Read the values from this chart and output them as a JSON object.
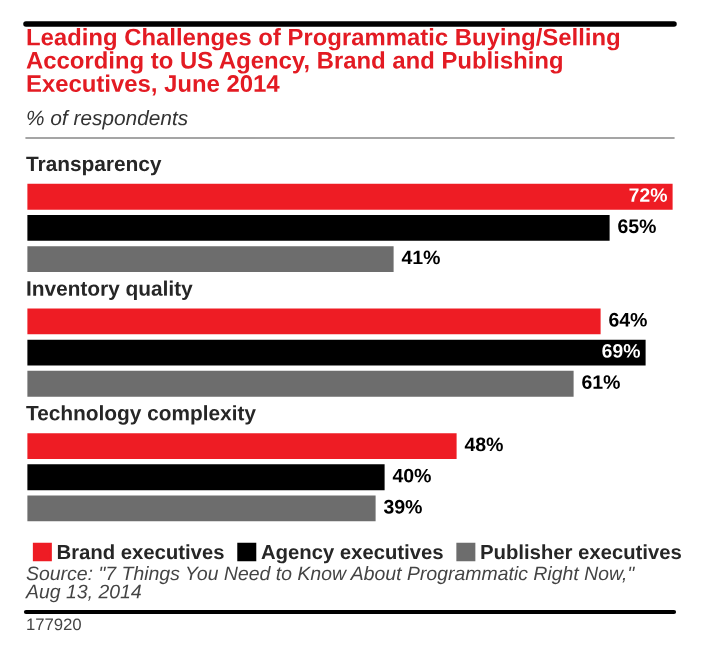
{
  "chart_data": {
    "type": "bar",
    "orientation": "horizontal",
    "title": "Leading Challenges of Programmatic Buying/Selling According to US Agency, Brand and Publishing Executives, June 2014",
    "subtitle": "% of respondents",
    "categories": [
      "Transparency",
      "Inventory quality",
      "Technology complexity"
    ],
    "series": [
      {
        "name": "Brand executives",
        "color": "#ee1c24",
        "values": [
          72,
          64,
          48
        ],
        "value_labels": [
          "72%",
          "64%",
          "48%"
        ]
      },
      {
        "name": "Agency executives",
        "color": "#000000",
        "values": [
          65,
          69,
          40
        ],
        "value_labels": [
          "65%",
          "69%",
          "40%"
        ]
      },
      {
        "name": "Publisher executives",
        "color": "#6d6d6d",
        "values": [
          41,
          61,
          39
        ],
        "value_labels": [
          "41%",
          "61%",
          "39%"
        ]
      }
    ],
    "legend": "bottom",
    "annotations": [
      "Source: \"7 Things You Need to Know About Programmatic Right Now,\" Aug 13, 2014",
      "177920"
    ]
  }
}
